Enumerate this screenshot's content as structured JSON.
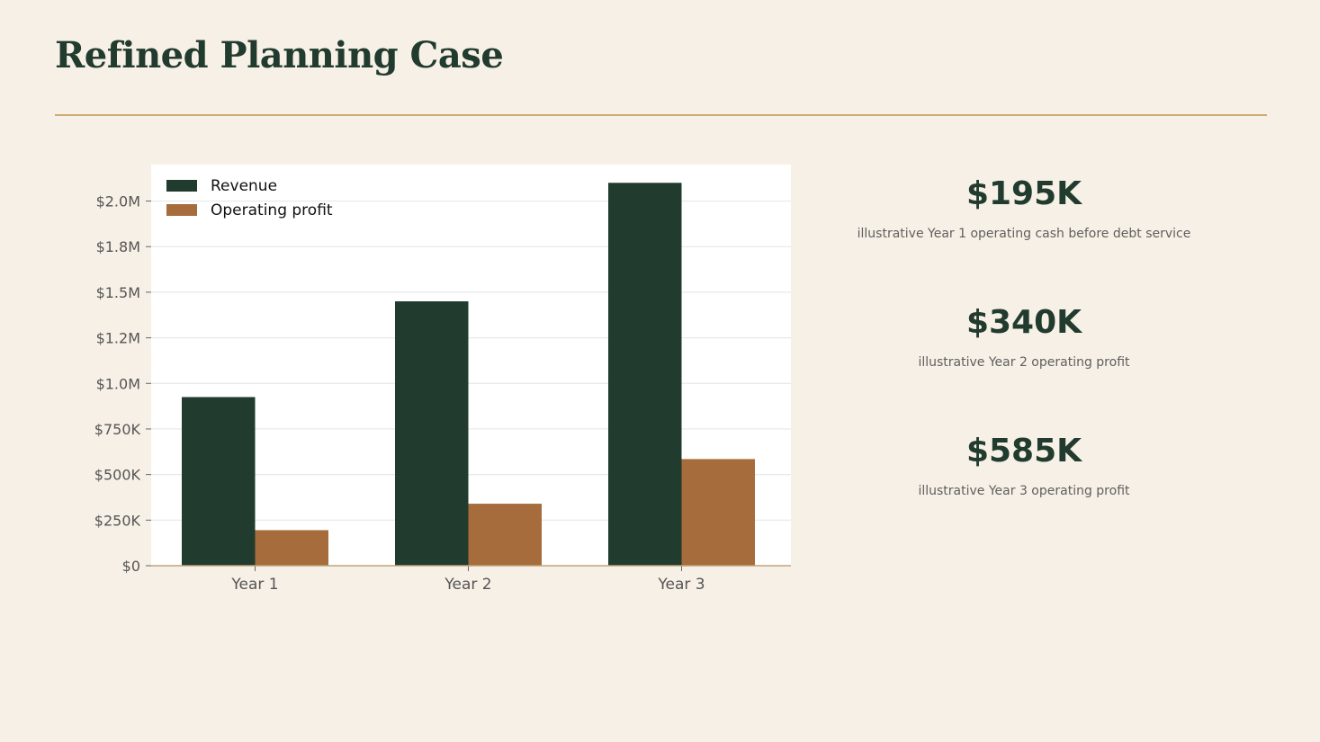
{
  "title": "Refined Planning Case",
  "colors": {
    "background": "#f7f0e6",
    "accent_rule": "#cdaa72",
    "revenue": "#213b2e",
    "profit": "#a66c3b",
    "title": "#213b2e"
  },
  "chart_data": {
    "type": "bar",
    "categories": [
      "Year 1",
      "Year 2",
      "Year 3"
    ],
    "series": [
      {
        "name": "Revenue",
        "values": [
          925000,
          1450000,
          2100000
        ],
        "color": "#213b2e"
      },
      {
        "name": "Operating profit",
        "values": [
          195000,
          340000,
          585000
        ],
        "color": "#a66c3b"
      }
    ],
    "yticks": [
      0,
      250000,
      500000,
      750000,
      1000000,
      1250000,
      1500000,
      1750000,
      2000000
    ],
    "ytick_labels": [
      "$0",
      "$250K",
      "$500K",
      "$750K",
      "$1.0M",
      "$1.2M",
      "$1.5M",
      "$1.8M",
      "$2.0M"
    ],
    "ylim": [
      0,
      2200000
    ],
    "legend": "top-left",
    "grid": true
  },
  "kpis": [
    {
      "value": "$195K",
      "label": "illustrative Year 1 operating cash before debt service"
    },
    {
      "value": "$340K",
      "label": "illustrative Year 2 operating profit"
    },
    {
      "value": "$585K",
      "label": "illustrative Year 3 operating profit"
    }
  ]
}
